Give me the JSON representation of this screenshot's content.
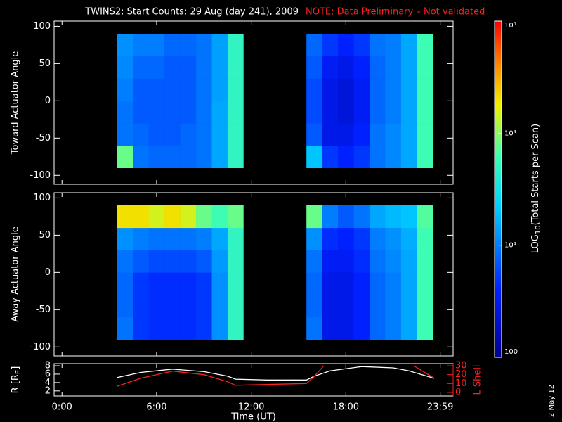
{
  "stamp": "2 May 12",
  "chart_data": [
    {
      "type": "heatmap",
      "title": "TWINS2: Start Counts: 29 Aug (day 241), 2009",
      "subtitle": "NOTE: Data Preliminary – Not validated",
      "y_label": "Toward Actuator Angle",
      "x": [
        4,
        5,
        6,
        7,
        8,
        9,
        10,
        11,
        16,
        17,
        18,
        19,
        20,
        21,
        22,
        23
      ],
      "y": [
        -75,
        -45,
        -15,
        15,
        45,
        75
      ],
      "z": [
        [
          8000,
          900,
          800,
          800,
          800,
          900,
          1500,
          5000,
          2000,
          500,
          400,
          500,
          900,
          1100,
          1500,
          6000
        ],
        [
          900,
          800,
          700,
          700,
          800,
          900,
          1500,
          5000,
          700,
          300,
          300,
          400,
          900,
          1100,
          1500,
          6000
        ],
        [
          900,
          700,
          700,
          700,
          700,
          900,
          1500,
          5000,
          600,
          300,
          250,
          350,
          800,
          1000,
          1500,
          6000
        ],
        [
          1000,
          700,
          700,
          700,
          700,
          900,
          1400,
          5000,
          600,
          300,
          250,
          350,
          800,
          1000,
          1500,
          6000
        ],
        [
          1100,
          800,
          800,
          700,
          700,
          900,
          1400,
          5000,
          700,
          350,
          300,
          400,
          800,
          1000,
          1500,
          6000
        ],
        [
          1200,
          1000,
          1000,
          800,
          800,
          900,
          1400,
          5000,
          800,
          500,
          400,
          500,
          900,
          1000,
          1500,
          6000
        ]
      ],
      "xlim": [
        -0.5,
        24.8
      ],
      "xticks": [
        0,
        6,
        12,
        18,
        23.983
      ],
      "ylim": [
        -112,
        107
      ],
      "yticks": [
        -100,
        -50,
        0,
        50,
        100
      ],
      "colorbar": {
        "label": "LOG",
        "label_sub": "10",
        "label_end": "(Total Starts per Scan)",
        "lim": [
          100,
          100000
        ],
        "log": true,
        "ticks": [
          {
            "value": 100000,
            "label": "10⁵"
          },
          {
            "value": 10000,
            "label": "10⁴"
          },
          {
            "value": 1000,
            "label": "10³"
          },
          100
        ]
      }
    },
    {
      "type": "heatmap",
      "y_label": "Away Actuator Angle",
      "x": [
        4,
        5,
        6,
        7,
        8,
        9,
        10,
        11,
        16,
        17,
        18,
        19,
        20,
        21,
        22,
        23
      ],
      "y": [
        -75,
        -45,
        -15,
        15,
        45,
        75
      ],
      "z": [
        [
          900,
          500,
          450,
          450,
          450,
          500,
          1200,
          5000,
          900,
          300,
          300,
          400,
          800,
          1000,
          1500,
          6000
        ],
        [
          800,
          500,
          450,
          450,
          450,
          500,
          1200,
          5000,
          800,
          300,
          300,
          400,
          800,
          1000,
          1500,
          6000
        ],
        [
          800,
          500,
          450,
          450,
          450,
          500,
          1200,
          5000,
          800,
          300,
          300,
          400,
          800,
          1000,
          1500,
          6000
        ],
        [
          900,
          700,
          600,
          600,
          600,
          700,
          1300,
          5000,
          900,
          350,
          350,
          450,
          900,
          1100,
          1500,
          6000
        ],
        [
          1200,
          1000,
          900,
          900,
          900,
          1000,
          1500,
          5000,
          1200,
          450,
          400,
          500,
          1000,
          1200,
          1600,
          6000
        ],
        [
          20000,
          20000,
          15000,
          20000,
          15000,
          8000,
          6000,
          8000,
          8000,
          1000,
          700,
          900,
          1500,
          1800,
          2000,
          7000
        ]
      ],
      "xlim": [
        -0.5,
        24.8
      ],
      "xticks": [
        0,
        6,
        12,
        18,
        23.983
      ],
      "ylim": [
        -112,
        107
      ],
      "yticks": [
        -100,
        -50,
        0,
        50,
        100
      ]
    },
    {
      "type": "line",
      "x_label": "Time (UT)",
      "y_label": "R [R",
      "y_label_sub": "E",
      "y_label_end": "]",
      "y2_label": "L Shell",
      "xlim": [
        -0.5,
        24.8
      ],
      "xticks": [
        {
          "value": 0,
          "label": "0:00"
        },
        {
          "value": 6,
          "label": "6:00"
        },
        {
          "value": 12,
          "label": "12:00"
        },
        {
          "value": 18,
          "label": "18:00"
        },
        {
          "value": 23.983,
          "label": "23:59"
        }
      ],
      "ylim": [
        0.8,
        8.5
      ],
      "yticks": [
        2,
        4,
        6,
        8
      ],
      "y2lim": [
        -4,
        32.4
      ],
      "y2ticks": [
        0,
        10,
        20,
        30
      ],
      "series": [
        {
          "color": "#ffffff",
          "x": [
            3.5,
            5,
            7,
            9,
            10.5,
            11,
            13,
            15.5,
            16,
            17,
            19,
            21,
            22,
            23.6
          ],
          "values": [
            5.2,
            6.4,
            7.2,
            6.6,
            5.5,
            4.8,
            4.6,
            4.6,
            5.5,
            6.8,
            7.8,
            7.5,
            6.8,
            5.0
          ]
        },
        {
          "color": "#ff2020",
          "axis": "y2",
          "x": [
            3.5,
            5,
            7,
            9,
            10.5,
            11,
            13,
            15.5,
            16,
            16.6,
            20,
            22.3,
            23.6
          ],
          "values": [
            7,
            16,
            24,
            20,
            12,
            8,
            9,
            10,
            18,
            30,
            null,
            30,
            16
          ]
        }
      ]
    }
  ]
}
